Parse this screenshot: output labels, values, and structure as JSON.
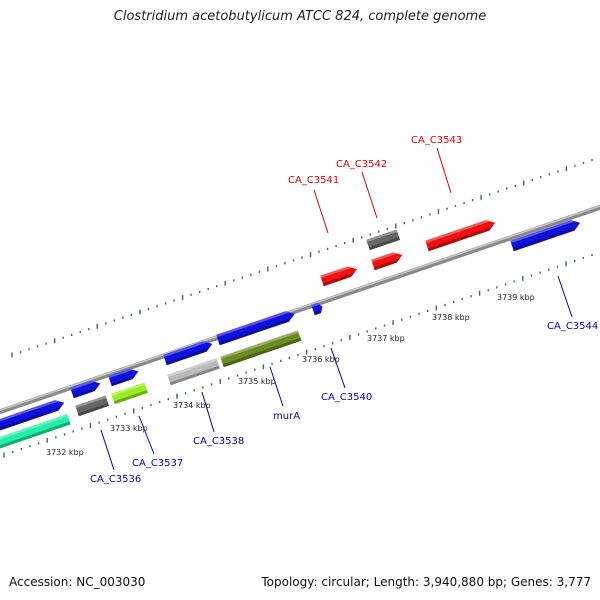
{
  "title": "Clostridium acetobutylicum ATCC 824, complete genome",
  "footer": {
    "accession": "Accession: NC_003030",
    "summary": "Topology: circular; Length: 3,940,880 bp; Genes: 3,777"
  },
  "colors": {
    "backbone": "#888888",
    "tick": "#2a7a2a",
    "label_plus": "#dd0000",
    "label_minus": "#0000bb"
  },
  "scale_labels": [
    "3732 kbp",
    "3733 kbp",
    "3734 kbp",
    "3735 kbp",
    "3736 kbp",
    "3737 kbp",
    "3738 kbp",
    "3739 kbp"
  ],
  "gene_labels": [
    {
      "text": "CA_C3541",
      "color": "#dd0000"
    },
    {
      "text": "CA_C3542",
      "color": "#dd0000"
    },
    {
      "text": "CA_C3543",
      "color": "#dd0000"
    },
    {
      "text": "CA_C3536",
      "color": "#0000bb"
    },
    {
      "text": "CA_C3537",
      "color": "#0000bb"
    },
    {
      "text": "CA_C3538",
      "color": "#0000bb"
    },
    {
      "text": "murA",
      "color": "#0000bb"
    },
    {
      "text": "CA_C3540",
      "color": "#0000bb"
    },
    {
      "text": "CA_C3544",
      "color": "#0000bb"
    }
  ],
  "features": [
    {
      "name": "feature-1",
      "color": "#1111dd"
    },
    {
      "name": "feature-2",
      "color": "#22eeaa"
    },
    {
      "name": "feature-3",
      "color": "#1111dd"
    },
    {
      "name": "feature-4",
      "color": "#666666"
    },
    {
      "name": "feature-5",
      "color": "#1111dd"
    },
    {
      "name": "feature-6",
      "color": "#99ee22"
    },
    {
      "name": "feature-7",
      "color": "#1111dd"
    },
    {
      "name": "feature-8",
      "color": "#bbbbbb"
    },
    {
      "name": "feature-9",
      "color": "#1111dd"
    },
    {
      "name": "feature-10",
      "color": "#6a8a22"
    },
    {
      "name": "feature-11",
      "color": "#1111dd"
    },
    {
      "name": "feature-12",
      "color": "#ee1111"
    },
    {
      "name": "feature-13",
      "color": "#666666"
    },
    {
      "name": "feature-14",
      "color": "#ee1111"
    },
    {
      "name": "feature-15",
      "color": "#ee1111"
    },
    {
      "name": "feature-16",
      "color": "#1111dd"
    }
  ]
}
